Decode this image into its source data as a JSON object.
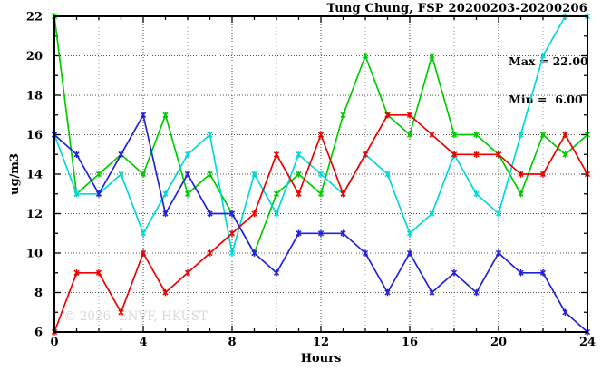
{
  "title": "Tung Chung, FSP 20200203-20200206",
  "annotation": {
    "max_label": "Max = 22.00",
    "min_label": "Min =  6.00"
  },
  "watermark": "© 2026  ENVF, HKUST",
  "chart_data": {
    "type": "line",
    "title": "Tung Chung, FSP 20200203-20200206",
    "xlabel": "Hours",
    "ylabel": "ug/m3",
    "xlim": [
      0,
      24
    ],
    "ylim": [
      6,
      22
    ],
    "x_major_ticks": [
      0,
      4,
      8,
      12,
      16,
      20,
      24
    ],
    "y_major_ticks": [
      6,
      8,
      10,
      12,
      14,
      16,
      18,
      20,
      22
    ],
    "grid": {
      "x_step": 2,
      "y_step": 2,
      "style": "dotted"
    },
    "legend": "none",
    "marker": "asterisk",
    "stat_max": 22.0,
    "stat_min": 6.0,
    "x": [
      0,
      1,
      2,
      3,
      4,
      5,
      6,
      7,
      8,
      9,
      10,
      11,
      12,
      13,
      14,
      15,
      16,
      17,
      18,
      19,
      20,
      21,
      22,
      23,
      24
    ],
    "series": [
      {
        "name": "green",
        "color": "#00cc00",
        "values": [
          22,
          13,
          14,
          15,
          14,
          17,
          13,
          14,
          12,
          10,
          13,
          14,
          13,
          17,
          20,
          17,
          16,
          20,
          16,
          16,
          15,
          13,
          16,
          15,
          16
        ]
      },
      {
        "name": "cyan",
        "color": "#00d9d9",
        "values": [
          16,
          13,
          13,
          14,
          11,
          13,
          15,
          16,
          10,
          14,
          12,
          15,
          14,
          13,
          15,
          14,
          11,
          12,
          15,
          13,
          12,
          16,
          20,
          22,
          22
        ]
      },
      {
        "name": "blue",
        "color": "#2222dd",
        "values": [
          16,
          15,
          13,
          15,
          17,
          12,
          14,
          12,
          12,
          10,
          9,
          11,
          11,
          11,
          10,
          8,
          10,
          8,
          9,
          8,
          10,
          9,
          9,
          7,
          6
        ]
      },
      {
        "name": "red",
        "color": "#ee0000",
        "values": [
          6,
          9,
          9,
          7,
          10,
          8,
          9,
          10,
          11,
          12,
          15,
          13,
          16,
          13,
          15,
          17,
          17,
          16,
          15,
          15,
          15,
          14,
          14,
          16,
          14
        ]
      }
    ]
  }
}
